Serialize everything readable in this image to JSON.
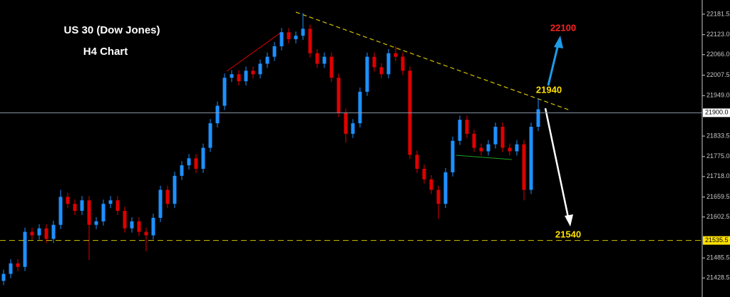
{
  "chart_data": {
    "type": "candlestick",
    "title": "US 30 (Dow Jones)",
    "subtitle": "H4 Chart",
    "up_color": "#1e90ff",
    "down_color": "#e00000",
    "open": [
      21420,
      21440,
      21470,
      21460,
      21560,
      21550,
      21570,
      21540,
      21580,
      21660,
      21640,
      21620,
      21650,
      21580,
      21590,
      21640,
      21650,
      21620,
      21570,
      21590,
      21560,
      21550,
      21600,
      21680,
      21640,
      21720,
      21750,
      21770,
      21740,
      21800,
      21870,
      21920,
      22000,
      22010,
      21990,
      22020,
      22010,
      22040,
      22060,
      22090,
      22130,
      22110,
      22120,
      22140,
      22070,
      22040,
      22060,
      22000,
      21900,
      21840,
      21870,
      21960,
      22060,
      22030,
      22010,
      22070,
      22060,
      22020,
      21780,
      21740,
      21710,
      21680,
      21640,
      21730,
      21820,
      21880,
      21840,
      21800,
      21790,
      21810,
      21860,
      21800,
      21790,
      21810,
      21680,
      21860
    ],
    "high": [
      21452,
      21482,
      21482,
      21572,
      21572,
      21582,
      21582,
      21592,
      21680,
      21672,
      21652,
      21662,
      21662,
      21602,
      21652,
      21662,
      21662,
      21632,
      21602,
      21602,
      21572,
      21612,
      21692,
      21692,
      21732,
      21762,
      21782,
      21782,
      21812,
      21882,
      21932,
      22012,
      22022,
      22022,
      22032,
      22032,
      22052,
      22072,
      22102,
      22142,
      22142,
      22132,
      22185,
      22152,
      22082,
      22072,
      22072,
      22012,
      21912,
      21882,
      21972,
      22072,
      22072,
      22042,
      22082,
      22090,
      22072,
      22032,
      21792,
      21752,
      21722,
      21692,
      21742,
      21832,
      21892,
      21892,
      21852,
      21812,
      21822,
      21872,
      21872,
      21812,
      21822,
      21822,
      21872,
      21940
    ],
    "low": [
      21408,
      21428,
      21448,
      21448,
      21538,
      21538,
      21528,
      21528,
      21568,
      21628,
      21608,
      21608,
      21480,
      21568,
      21578,
      21628,
      21608,
      21558,
      21558,
      21548,
      21505,
      21538,
      21588,
      21628,
      21628,
      21708,
      21738,
      21728,
      21728,
      21788,
      21858,
      21908,
      21988,
      21978,
      21978,
      21998,
      21998,
      22028,
      22048,
      22078,
      22098,
      22098,
      22108,
      22058,
      22028,
      22028,
      21988,
      21888,
      21815,
      21828,
      21858,
      21948,
      22018,
      21998,
      21998,
      22048,
      22008,
      21768,
      21728,
      21698,
      21668,
      21597,
      21628,
      21718,
      21808,
      21828,
      21788,
      21778,
      21778,
      21798,
      21788,
      21778,
      21778,
      21650,
      21668,
      21848
    ],
    "close": [
      21440,
      21470,
      21460,
      21560,
      21550,
      21570,
      21540,
      21580,
      21660,
      21640,
      21620,
      21650,
      21580,
      21590,
      21640,
      21650,
      21620,
      21570,
      21590,
      21560,
      21550,
      21600,
      21680,
      21640,
      21720,
      21750,
      21770,
      21740,
      21800,
      21870,
      21920,
      22000,
      22010,
      21990,
      22020,
      22010,
      22040,
      22060,
      22090,
      22130,
      22110,
      22120,
      22140,
      22070,
      22040,
      22060,
      22000,
      21900,
      21840,
      21870,
      21960,
      22060,
      22030,
      22010,
      22070,
      22060,
      22020,
      21780,
      21740,
      21710,
      21680,
      21640,
      21730,
      21820,
      21880,
      21840,
      21800,
      21790,
      21810,
      21860,
      21800,
      21790,
      21810,
      21680,
      21860,
      21910
    ],
    "ylim": [
      21374,
      22222
    ],
    "yticks": [
      22181.5,
      {
        "value": 22123,
        "label": "22123.0"
      },
      {
        "value": 22066,
        "label": "22066.0"
      },
      22007.5,
      {
        "value": 21949,
        "label": "21949.0"
      },
      21833.5,
      {
        "value": 21775,
        "label": "21775.0"
      },
      {
        "value": 21718,
        "label": "21718.0"
      },
      21659.5,
      21602.5,
      21485.5,
      21428.5
    ],
    "price_lines": [
      {
        "value": 21900,
        "label": "21900.0",
        "color": "#8a99a8",
        "box": "#ffffff"
      },
      {
        "value": 21535.5,
        "label": "21535.5",
        "color": "#d4c000",
        "box": "#ffe000"
      }
    ],
    "annotations": [
      "22100",
      "21940",
      "21540"
    ]
  }
}
